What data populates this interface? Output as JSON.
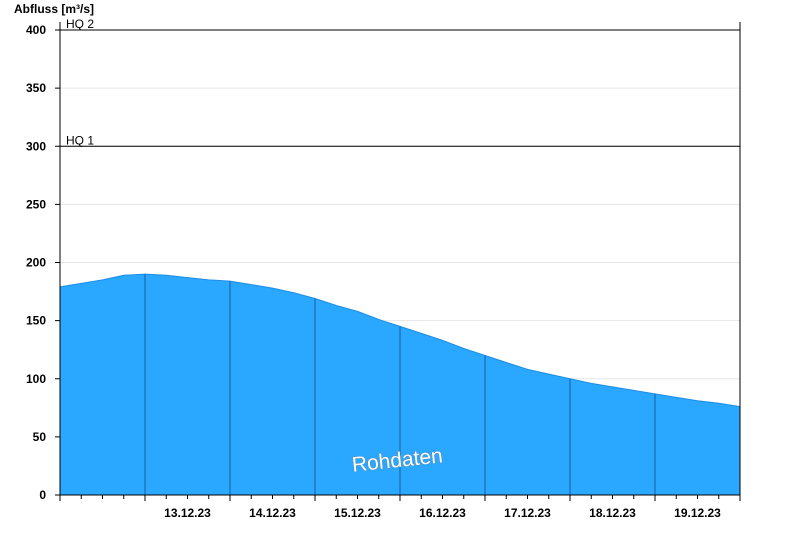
{
  "chart_data": {
    "type": "area",
    "ylabel": "Abfluss [m³/s]",
    "ylim": [
      0,
      400
    ],
    "yticks": [
      0,
      50,
      100,
      150,
      200,
      250,
      300,
      350,
      400
    ],
    "xlim": [
      "12.12.23 00:00",
      "19.12.23 24:00"
    ],
    "xtick_labels": [
      "13.12.23",
      "14.12.23",
      "15.12.23",
      "16.12.23",
      "17.12.23",
      "18.12.23",
      "19.12.23"
    ],
    "grid": true,
    "fill_color": "#2aa7ff",
    "series": [
      {
        "x": [
          "12.12.23 00:00",
          "12.12.23 06:00",
          "12.12.23 12:00",
          "12.12.23 18:00",
          "13.12.23 00:00",
          "13.12.23 06:00",
          "13.12.23 12:00",
          "13.12.23 18:00",
          "14.12.23 00:00",
          "14.12.23 06:00",
          "14.12.23 12:00",
          "14.12.23 18:00",
          "15.12.23 00:00",
          "15.12.23 06:00",
          "15.12.23 12:00",
          "15.12.23 18:00",
          "16.12.23 00:00",
          "16.12.23 06:00",
          "16.12.23 12:00",
          "16.12.23 18:00",
          "17.12.23 00:00",
          "17.12.23 06:00",
          "17.12.23 12:00",
          "17.12.23 18:00",
          "18.12.23 00:00",
          "18.12.23 06:00",
          "18.12.23 12:00",
          "18.12.23 18:00",
          "19.12.23 00:00",
          "19.12.23 06:00",
          "19.12.23 12:00",
          "19.12.23 18:00",
          "19.12.23 24:00"
        ],
        "y": [
          179,
          182,
          185,
          189,
          190,
          189,
          187,
          185,
          184,
          181,
          178,
          174,
          169,
          163,
          158,
          151,
          145,
          139,
          133,
          126,
          120,
          114,
          108,
          104,
          100,
          96,
          93,
          90,
          87,
          84,
          81,
          79,
          76
        ]
      }
    ],
    "thresholds": [
      {
        "label": "HQ 1",
        "value": 300
      },
      {
        "label": "HQ 2",
        "value": 400
      }
    ],
    "watermark": "Rohdaten"
  }
}
